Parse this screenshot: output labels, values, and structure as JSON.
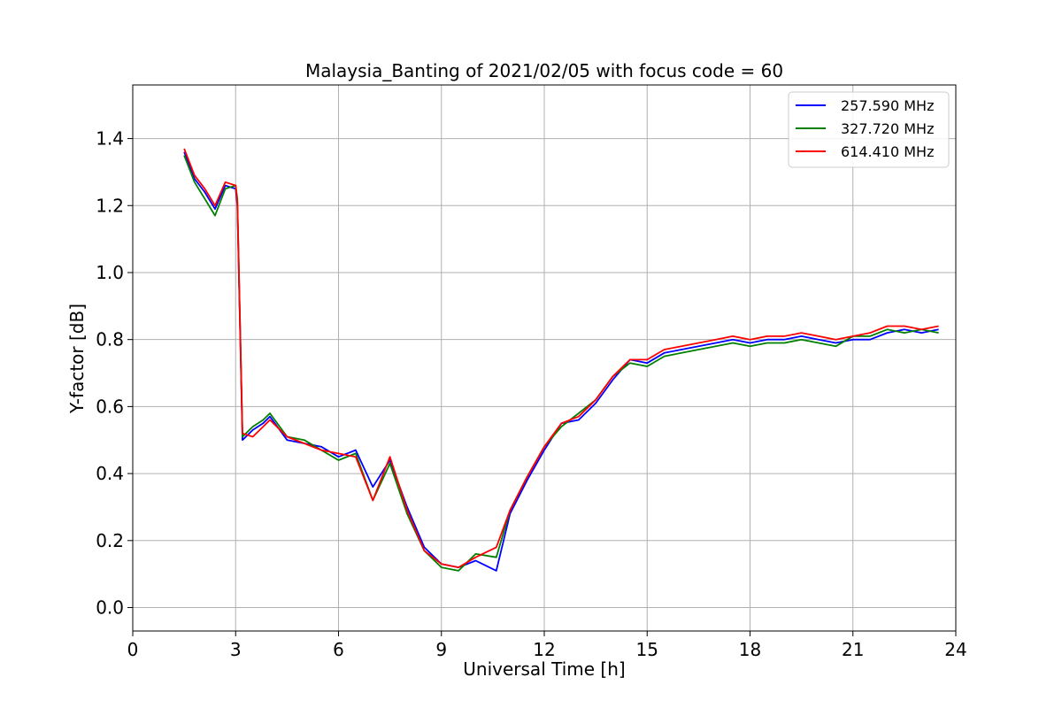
{
  "chart_data": {
    "type": "line",
    "title": "Malaysia_Banting of 2021/02/05 with focus code = 60",
    "xlabel": "Universal Time [h]",
    "ylabel": "Y-factor [dB]",
    "xlim": [
      0,
      24
    ],
    "ylim": [
      -0.07,
      1.56
    ],
    "xticks": [
      0,
      3,
      6,
      9,
      12,
      15,
      18,
      21,
      24
    ],
    "yticks": [
      0.0,
      0.2,
      0.4,
      0.6,
      0.8,
      1.0,
      1.2,
      1.4
    ],
    "xtick_labels": [
      "0",
      "3",
      "6",
      "9",
      "12",
      "15",
      "18",
      "21",
      "24"
    ],
    "ytick_labels": [
      "0.0",
      "0.2",
      "0.4",
      "0.6",
      "0.8",
      "1.0",
      "1.2",
      "1.4"
    ],
    "grid": true,
    "legend_position": "top-right",
    "series": [
      {
        "name": "257.590 MHz",
        "color": "#0000ff",
        "x": [
          1.5,
          1.8,
          2.1,
          2.4,
          2.7,
          3.0,
          3.05,
          3.2,
          3.5,
          3.8,
          4.0,
          4.5,
          5.0,
          5.5,
          6.0,
          6.5,
          7.0,
          7.5,
          8.0,
          8.5,
          9.0,
          9.5,
          10.0,
          10.6,
          11.0,
          11.5,
          12.0,
          12.5,
          13.0,
          13.5,
          14.0,
          14.5,
          15.0,
          15.5,
          16.0,
          16.5,
          17.0,
          17.5,
          18.0,
          18.5,
          19.0,
          19.5,
          20.0,
          20.5,
          21.0,
          21.5,
          22.0,
          22.5,
          23.0,
          23.5
        ],
        "values": [
          1.36,
          1.28,
          1.24,
          1.19,
          1.26,
          1.25,
          1.2,
          0.5,
          0.53,
          0.55,
          0.57,
          0.5,
          0.49,
          0.48,
          0.45,
          0.47,
          0.36,
          0.44,
          0.3,
          0.18,
          0.13,
          0.12,
          0.14,
          0.11,
          0.28,
          0.38,
          0.47,
          0.55,
          0.56,
          0.61,
          0.68,
          0.74,
          0.73,
          0.76,
          0.77,
          0.78,
          0.79,
          0.8,
          0.79,
          0.8,
          0.8,
          0.81,
          0.8,
          0.79,
          0.8,
          0.8,
          0.82,
          0.83,
          0.82,
          0.83
        ]
      },
      {
        "name": "327.720 MHz",
        "color": "#008000",
        "x": [
          1.5,
          1.8,
          2.1,
          2.4,
          2.7,
          3.0,
          3.05,
          3.2,
          3.5,
          3.8,
          4.0,
          4.5,
          5.0,
          5.5,
          6.0,
          6.5,
          7.0,
          7.5,
          8.0,
          8.5,
          9.0,
          9.5,
          10.0,
          10.6,
          11.0,
          11.5,
          12.0,
          12.5,
          13.0,
          13.5,
          14.0,
          14.5,
          15.0,
          15.5,
          16.0,
          16.5,
          17.0,
          17.5,
          18.0,
          18.5,
          19.0,
          19.5,
          20.0,
          20.5,
          21.0,
          21.5,
          22.0,
          22.5,
          23.0,
          23.5
        ],
        "values": [
          1.35,
          1.27,
          1.22,
          1.17,
          1.25,
          1.26,
          1.22,
          0.51,
          0.54,
          0.56,
          0.58,
          0.51,
          0.5,
          0.47,
          0.44,
          0.46,
          0.32,
          0.43,
          0.28,
          0.17,
          0.12,
          0.11,
          0.16,
          0.15,
          0.29,
          0.39,
          0.48,
          0.54,
          0.58,
          0.62,
          0.69,
          0.73,
          0.72,
          0.75,
          0.76,
          0.77,
          0.78,
          0.79,
          0.78,
          0.79,
          0.79,
          0.8,
          0.79,
          0.78,
          0.81,
          0.81,
          0.83,
          0.82,
          0.83,
          0.82
        ]
      },
      {
        "name": "614.410 MHz",
        "color": "#ff0000",
        "x": [
          1.5,
          1.8,
          2.1,
          2.4,
          2.7,
          3.0,
          3.05,
          3.2,
          3.5,
          3.8,
          4.0,
          4.5,
          5.0,
          5.5,
          6.0,
          6.5,
          7.0,
          7.5,
          8.0,
          8.5,
          9.0,
          9.5,
          10.0,
          10.6,
          11.0,
          11.5,
          12.0,
          12.5,
          13.0,
          13.5,
          14.0,
          14.5,
          15.0,
          15.5,
          16.0,
          16.5,
          17.0,
          17.5,
          18.0,
          18.5,
          19.0,
          19.5,
          20.0,
          20.5,
          21.0,
          21.5,
          22.0,
          22.5,
          23.0,
          23.5
        ],
        "values": [
          1.37,
          1.29,
          1.25,
          1.2,
          1.27,
          1.26,
          1.21,
          0.52,
          0.51,
          0.54,
          0.56,
          0.51,
          0.49,
          0.47,
          0.46,
          0.45,
          0.32,
          0.45,
          0.29,
          0.17,
          0.13,
          0.12,
          0.15,
          0.18,
          0.29,
          0.39,
          0.48,
          0.55,
          0.57,
          0.62,
          0.69,
          0.74,
          0.74,
          0.77,
          0.78,
          0.79,
          0.8,
          0.81,
          0.8,
          0.81,
          0.81,
          0.82,
          0.81,
          0.8,
          0.81,
          0.82,
          0.84,
          0.84,
          0.83,
          0.84
        ]
      }
    ]
  }
}
